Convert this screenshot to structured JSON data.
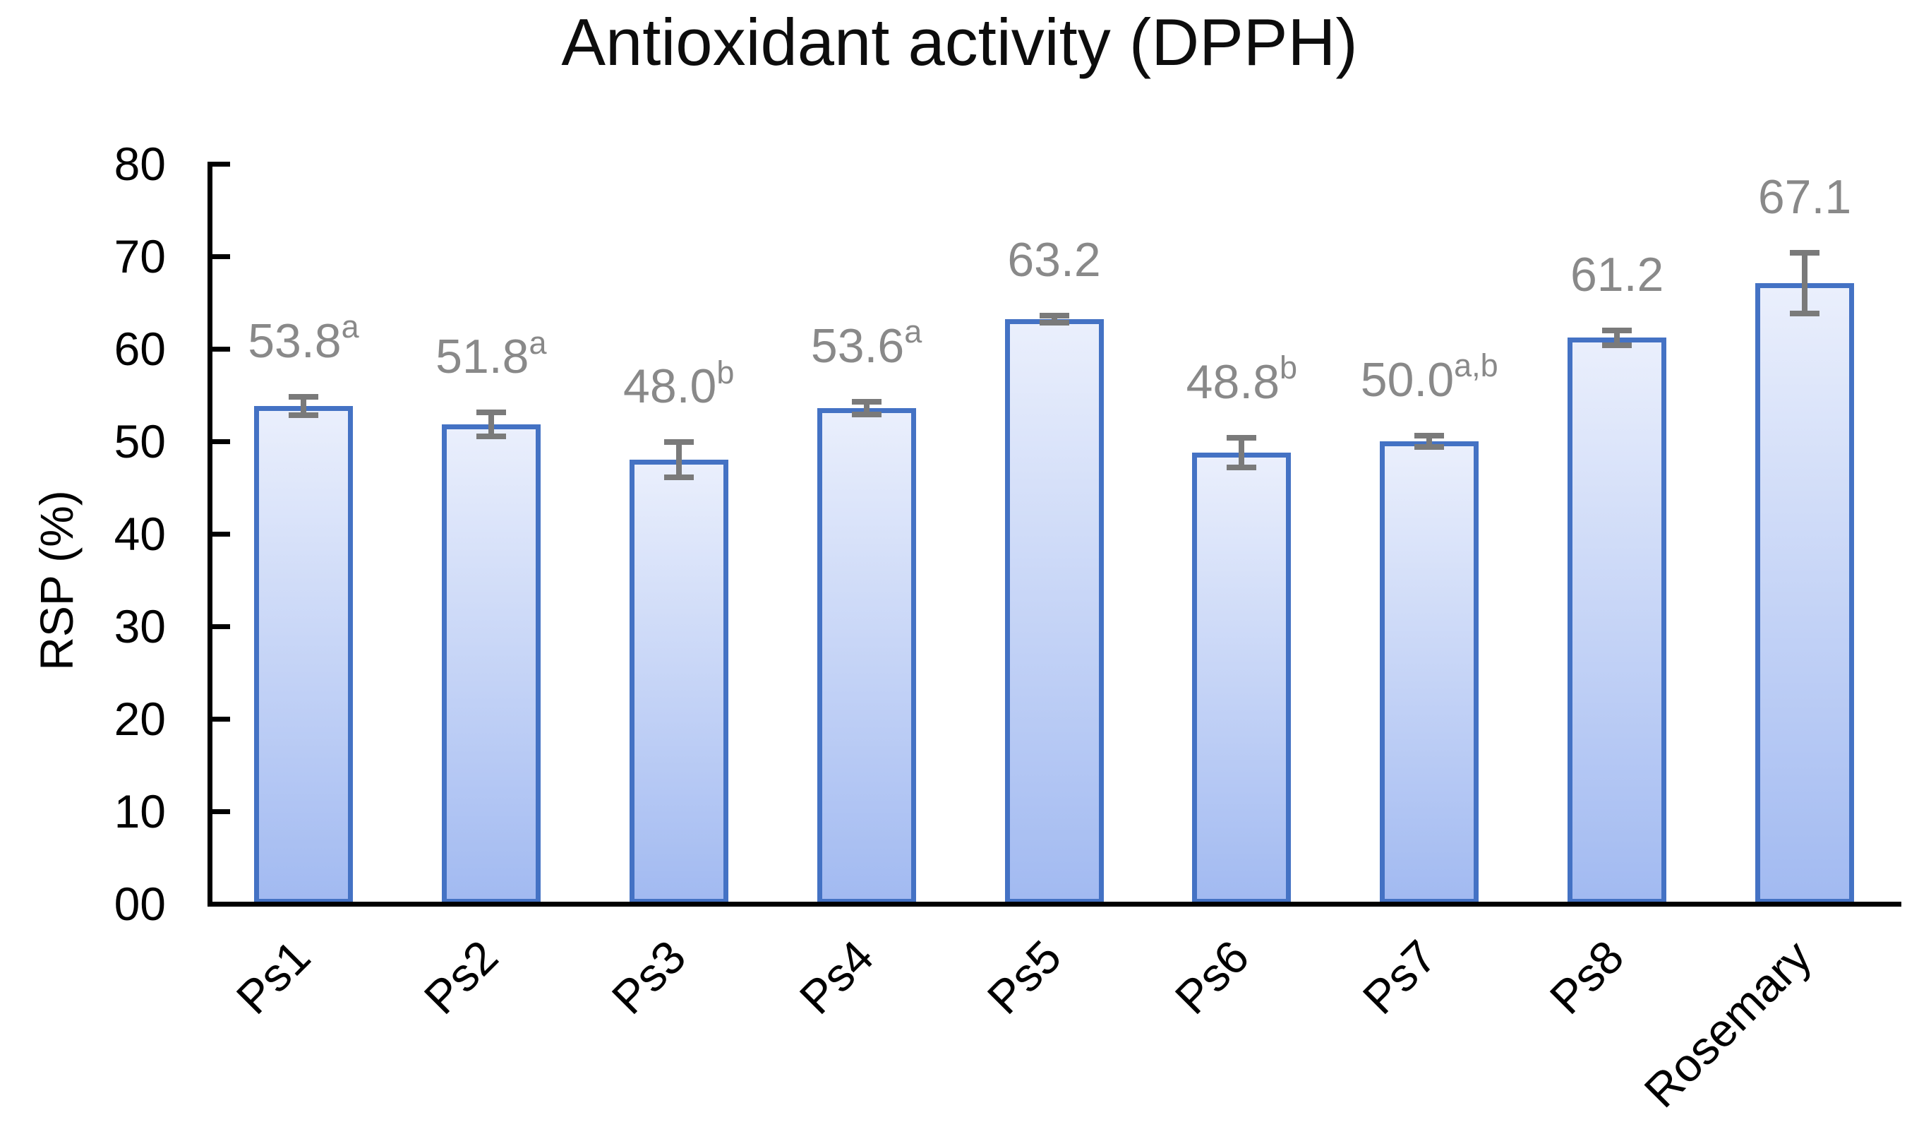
{
  "chart_data": {
    "type": "bar",
    "title": "Antioxidant activity (DPPH)",
    "ylabel": "RSP (%)",
    "xlabel": "",
    "categories": [
      "Ps1",
      "Ps2",
      "Ps3",
      "Ps4",
      "Ps5",
      "Ps6",
      "Ps7",
      "Ps8",
      "Rosemary"
    ],
    "values": [
      53.8,
      51.8,
      48.0,
      53.6,
      63.2,
      48.8,
      50.0,
      61.2,
      67.1
    ],
    "error_bars": [
      1.0,
      1.3,
      1.9,
      0.7,
      0.4,
      1.6,
      0.6,
      0.8,
      3.3
    ],
    "data_labels": [
      {
        "text": "53.8",
        "sup": "a"
      },
      {
        "text": "51.8",
        "sup": "a"
      },
      {
        "text": "48.0",
        "sup": "b"
      },
      {
        "text": "53.6",
        "sup": "a"
      },
      {
        "text": "63.2",
        "sup": ""
      },
      {
        "text": "48.8",
        "sup": "b"
      },
      {
        "text": "50.0",
        "sup": "a,b"
      },
      {
        "text": "61.2",
        "sup": ""
      },
      {
        "text": "67.1",
        "sup": ""
      }
    ],
    "ylim": [
      0,
      80
    ],
    "ytick_step": 10,
    "ytick_labels": [
      "00",
      "10",
      "20",
      "30",
      "40",
      "50",
      "60",
      "70",
      "80"
    ],
    "grid": false,
    "legend": "none",
    "colors": {
      "bar_border": "#4472C4",
      "bar_fill_top": "#EAEFFC",
      "bar_fill_bottom": "#A2BAF1",
      "error_bar": "#7A7A7A",
      "data_label": "#898989",
      "axis": "#000000",
      "title": "#0d0d0d"
    }
  }
}
